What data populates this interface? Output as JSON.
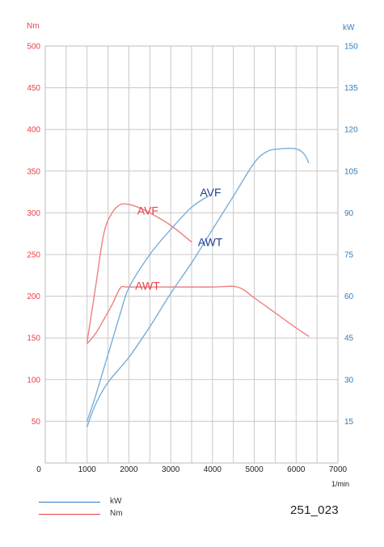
{
  "chart_data": {
    "type": "line",
    "title": "",
    "x_axis": {
      "unit_label": "1/min",
      "min": 0,
      "max": 7000,
      "ticks": [
        0,
        1000,
        2000,
        3000,
        4000,
        5000,
        6000,
        7000
      ],
      "grid_minor_step": 500
    },
    "y_left": {
      "unit_label": "Nm",
      "min": 0,
      "max": 500,
      "ticks": [
        50,
        100,
        150,
        200,
        250,
        300,
        350,
        400,
        450,
        500
      ],
      "color": "#e8424a"
    },
    "y_right": {
      "unit_label": "kW",
      "min": 0,
      "max": 150,
      "ticks": [
        15,
        30,
        45,
        60,
        75,
        90,
        105,
        120,
        135,
        150
      ],
      "color": "#2f7dbf"
    },
    "grid": true,
    "series": [
      {
        "name": "AVF",
        "quantity": "Nm",
        "axis": "left",
        "color": "#f08080",
        "points": [
          [
            1000,
            145
          ],
          [
            1200,
            210
          ],
          [
            1400,
            275
          ],
          [
            1600,
            300
          ],
          [
            1800,
            310
          ],
          [
            2000,
            310
          ],
          [
            2200,
            307
          ],
          [
            2500,
            300
          ],
          [
            3000,
            285
          ],
          [
            3500,
            265
          ]
        ]
      },
      {
        "name": "AWT",
        "quantity": "Nm",
        "axis": "left",
        "color": "#f08080",
        "points": [
          [
            1000,
            143
          ],
          [
            1200,
            155
          ],
          [
            1400,
            172
          ],
          [
            1600,
            190
          ],
          [
            1800,
            210
          ],
          [
            2000,
            211
          ],
          [
            3000,
            211
          ],
          [
            4000,
            211
          ],
          [
            4600,
            211
          ],
          [
            5000,
            198
          ],
          [
            5500,
            180
          ],
          [
            6000,
            162
          ],
          [
            6300,
            152
          ]
        ]
      },
      {
        "name": "AVF",
        "quantity": "kW",
        "axis": "right",
        "color": "#7aaed8",
        "points": [
          [
            1000,
            15
          ],
          [
            1200,
            24
          ],
          [
            1400,
            34
          ],
          [
            1600,
            44
          ],
          [
            1800,
            54
          ],
          [
            2000,
            63
          ],
          [
            2500,
            75
          ],
          [
            3000,
            84
          ],
          [
            3500,
            92
          ],
          [
            3900,
            96
          ]
        ]
      },
      {
        "name": "AWT",
        "quantity": "kW",
        "axis": "right",
        "color": "#7aaed8",
        "points": [
          [
            1000,
            13
          ],
          [
            1200,
            21
          ],
          [
            1500,
            29
          ],
          [
            2000,
            38
          ],
          [
            2500,
            49
          ],
          [
            3000,
            61
          ],
          [
            3500,
            72
          ],
          [
            4000,
            84
          ],
          [
            4500,
            96
          ],
          [
            5000,
            108
          ],
          [
            5300,
            112
          ],
          [
            5600,
            113
          ],
          [
            6000,
            113
          ],
          [
            6200,
            111
          ],
          [
            6300,
            108
          ]
        ]
      }
    ],
    "annotations": [
      {
        "text": "AVF",
        "color": "#e8424a",
        "at": [
          2200,
          298
        ],
        "axis": "left"
      },
      {
        "text": "AVF",
        "color": "#1f3f8f",
        "at": [
          3700,
          96
        ],
        "axis": "right"
      },
      {
        "text": "AWT",
        "color": "#e8424a",
        "at": [
          2150,
          208
        ],
        "axis": "left"
      },
      {
        "text": "AWT",
        "color": "#1f3f8f",
        "at": [
          3650,
          78
        ],
        "axis": "right"
      }
    ]
  },
  "legend": [
    {
      "label": "kW",
      "color": "#2f7dbf"
    },
    {
      "label": "Nm",
      "color": "#e8424a"
    }
  ],
  "figure_id": "251_023"
}
